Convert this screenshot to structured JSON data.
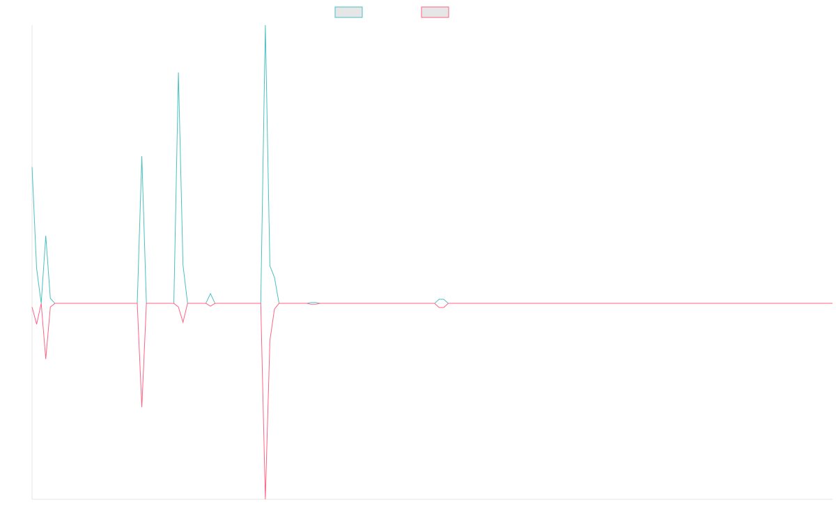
{
  "chart_data": {
    "type": "line",
    "ylim": [
      -0.704,
      1
    ],
    "series": [
      {
        "color": "#4bc0c0",
        "values": [
          0.49,
          0.125,
          0,
          0.243,
          0.018,
          0,
          0,
          0,
          0,
          0,
          0,
          0,
          0,
          0,
          0,
          0,
          0,
          0,
          0,
          0,
          0,
          0,
          0,
          0,
          0.529,
          0,
          0,
          0,
          0,
          0,
          0,
          0,
          0.83,
          0.138,
          0,
          0,
          0,
          0,
          0,
          0.035,
          0,
          0,
          0,
          0,
          0,
          0,
          0,
          0,
          0,
          0,
          0,
          1,
          0.135,
          0.093,
          0,
          0,
          0,
          0,
          0,
          0,
          0,
          0.003,
          0.003,
          0,
          0,
          0,
          0,
          0,
          0,
          0,
          0,
          0,
          0,
          0,
          0,
          0,
          0,
          0,
          0,
          0,
          0,
          0,
          0,
          0,
          0,
          0,
          0,
          0,
          0,
          0.015,
          0.015,
          0,
          0,
          0,
          0,
          0,
          0,
          0,
          0,
          0,
          0,
          0,
          0,
          0,
          0,
          0,
          0,
          0,
          0,
          0,
          0,
          0,
          0,
          0,
          0,
          0,
          0,
          0,
          0,
          0,
          0,
          0,
          0,
          0,
          0,
          0,
          0,
          0,
          0,
          0,
          0,
          0,
          0,
          0,
          0,
          0,
          0,
          0,
          0,
          0,
          0,
          0,
          0,
          0,
          0,
          0,
          0,
          0,
          0,
          0,
          0,
          0,
          0,
          0,
          0,
          0,
          0,
          0,
          0,
          0,
          0,
          0,
          0,
          0,
          0,
          0,
          0,
          0,
          0,
          0,
          0,
          0,
          0,
          0,
          0,
          0
        ]
      },
      {
        "color": "#ff6384",
        "values": [
          -0.013,
          -0.075,
          0,
          -0.2,
          -0.013,
          0,
          0,
          0,
          0,
          0,
          0,
          0,
          0,
          0,
          0,
          0,
          0,
          0,
          0,
          0,
          0,
          0,
          0,
          0,
          -0.373,
          0,
          0,
          0,
          0,
          0,
          0,
          0,
          -0.013,
          -0.068,
          0,
          0,
          0,
          0,
          0,
          -0.01,
          0,
          0,
          0,
          0,
          0,
          0,
          0,
          0,
          0,
          0,
          0,
          -0.704,
          -0.133,
          -0.02,
          0,
          0,
          0,
          0,
          0,
          0,
          0,
          -0.003,
          -0.003,
          0,
          0,
          0,
          0,
          0,
          0,
          0,
          0,
          0,
          0,
          0,
          0,
          0,
          0,
          0,
          0,
          0,
          0,
          0,
          0,
          0,
          0,
          0,
          0,
          0,
          0,
          -0.015,
          -0.015,
          0,
          0,
          0,
          0,
          0,
          0,
          0,
          0,
          0,
          0,
          0,
          0,
          0,
          0,
          0,
          0,
          0,
          0,
          0,
          0,
          0,
          0,
          0,
          0,
          0,
          0,
          0,
          0,
          0,
          0,
          0,
          0,
          0,
          0,
          0,
          0,
          0,
          0,
          0,
          0,
          0,
          0,
          0,
          0,
          0,
          0,
          0,
          0,
          0,
          0,
          0,
          0,
          0,
          0,
          0,
          0,
          0,
          0,
          0,
          0,
          0,
          0,
          0,
          0,
          0,
          0,
          0,
          0,
          0,
          0,
          0,
          0,
          0,
          0,
          0,
          0,
          0,
          0,
          0,
          0,
          0,
          0,
          0,
          0,
          0
        ]
      }
    ]
  }
}
